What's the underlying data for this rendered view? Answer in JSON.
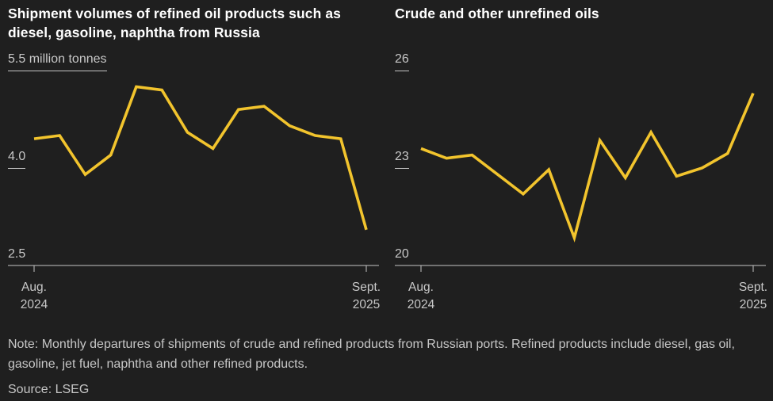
{
  "page": {
    "colors": {
      "background": "#1f1f1f",
      "line_yellow": "#f2c42d",
      "axis_gray": "#c4c4c4",
      "title_white": "#ffffff",
      "label_gray": "#c8c8c8"
    }
  },
  "note": {
    "text": "Note: Monthly departures of shipments of crude and refined products from Russian ports. Refined products include diesel, gas oil, gasoline, jet fuel, naphtha and other refined products."
  },
  "source": {
    "text": "Source: LSEG"
  },
  "chart_data": [
    {
      "type": "line",
      "title": "Shipment volumes of refined oil products such as diesel, gasoline, naphtha from Russia",
      "unit": "million tonnes",
      "x": [
        "Aug 2024",
        "Sep 2024",
        "Oct 2024",
        "Nov 2024",
        "Dec 2024",
        "Jan 2025",
        "Feb 2025",
        "Mar 2025",
        "Apr 2025",
        "May 2025",
        "Jun 2025",
        "Jul 2025",
        "Aug 2025",
        "Sep 2025"
      ],
      "values": [
        4.45,
        4.5,
        3.9,
        4.2,
        5.25,
        5.2,
        4.55,
        4.3,
        4.9,
        4.95,
        4.65,
        4.5,
        4.45,
        3.05
      ],
      "ylim": [
        2.5,
        5.5
      ],
      "grid": false,
      "legend": "none",
      "line_color": "#f2c42d",
      "yticks": [
        {
          "label": "5.5 million tonnes",
          "value": 5.5
        },
        {
          "label": "4.0",
          "value": 4.0
        },
        {
          "label": "2.5",
          "value": 2.5
        }
      ],
      "xtick_labels": [
        [
          "Aug.",
          "2024"
        ],
        [
          "Sept.",
          "2025"
        ]
      ]
    },
    {
      "type": "line",
      "title": "Crude and other unrefined oils",
      "unit": "million tonnes",
      "x": [
        "Aug 2024",
        "Sep 2024",
        "Oct 2024",
        "Nov 2024",
        "Dec 2024",
        "Jan 2025",
        "Feb 2025",
        "Mar 2025",
        "Apr 2025",
        "May 2025",
        "Jun 2025",
        "Jul 2025",
        "Aug 2025",
        "Sep 2025"
      ],
      "values": [
        23.6,
        23.3,
        23.4,
        22.8,
        22.2,
        22.95,
        20.85,
        23.85,
        22.7,
        24.1,
        22.75,
        23.0,
        23.45,
        25.3
      ],
      "ylim": [
        20,
        26
      ],
      "grid": false,
      "legend": "none",
      "line_color": "#f2c42d",
      "yticks": [
        {
          "label": "26",
          "value": 26
        },
        {
          "label": "23",
          "value": 23
        },
        {
          "label": "20",
          "value": 20
        }
      ],
      "xtick_labels": [
        [
          "Aug.",
          "2024"
        ],
        [
          "Sept.",
          "2025"
        ]
      ]
    }
  ]
}
